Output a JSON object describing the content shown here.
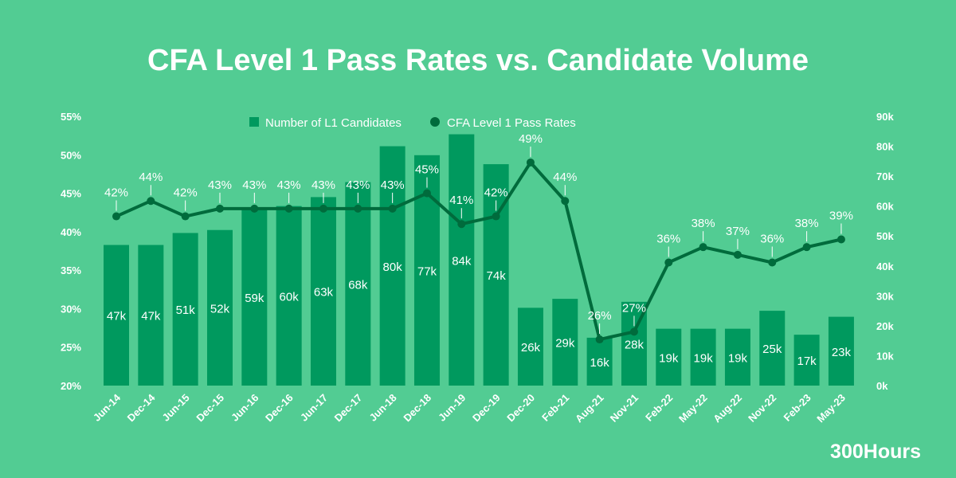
{
  "chart_data": {
    "type": "bar+line",
    "title": "CFA Level 1 Pass Rates vs. Candidate Volume",
    "categories": [
      "Jun-14",
      "Dec-14",
      "Jun-15",
      "Dec-15",
      "Jun-16",
      "Dec-16",
      "Jun-17",
      "Dec-17",
      "Jun-18",
      "Dec-18",
      "Jun-19",
      "Dec-19",
      "Dec-20",
      "Feb-21",
      "Aug-21",
      "Nov-21",
      "Feb-22",
      "May-22",
      "Aug-22",
      "Nov-22",
      "Feb-23",
      "May-23"
    ],
    "series": [
      {
        "name": "Number of L1 Candidates",
        "type": "bar",
        "axis": "right",
        "color": "#00995e",
        "values": [
          47,
          47,
          51,
          52,
          59,
          60,
          63,
          68,
          80,
          77,
          84,
          74,
          26,
          29,
          16,
          28,
          19,
          19,
          19,
          25,
          17,
          23
        ],
        "labels": [
          "47k",
          "47k",
          "51k",
          "52k",
          "59k",
          "60k",
          "63k",
          "68k",
          "80k",
          "77k",
          "84k",
          "74k",
          "26k",
          "29k",
          "16k",
          "28k",
          "19k",
          "19k",
          "19k",
          "25k",
          "17k",
          "23k"
        ]
      },
      {
        "name": "CFA Level 1 Pass Rates",
        "type": "line",
        "axis": "left",
        "color": "#006b3c",
        "values": [
          42,
          44,
          42,
          43,
          43,
          43,
          43,
          43,
          43,
          45,
          41,
          42,
          49,
          44,
          26,
          27,
          36,
          38,
          37,
          36,
          38,
          39
        ],
        "labels": [
          "42%",
          "44%",
          "42%",
          "43%",
          "43%",
          "43%",
          "43%",
          "43%",
          "43%",
          "45%",
          "41%",
          "42%",
          "49%",
          "44%",
          "26%",
          "27%",
          "36%",
          "38%",
          "37%",
          "36%",
          "38%",
          "39%"
        ]
      }
    ],
    "y_left": {
      "range": [
        20,
        55
      ],
      "ticks": [
        "20%",
        "25%",
        "30%",
        "35%",
        "40%",
        "45%",
        "50%",
        "55%"
      ]
    },
    "y_right": {
      "range": [
        0,
        90
      ],
      "ticks": [
        "0k",
        "10k",
        "20k",
        "30k",
        "40k",
        "50k",
        "60k",
        "70k",
        "80k",
        "90k"
      ]
    },
    "legend": "top-center",
    "grid": false
  },
  "brand": "300Hours",
  "colors": {
    "background": "#52cc93",
    "bars": "#00995e",
    "line": "#006b3c",
    "text": "#ffffff"
  }
}
